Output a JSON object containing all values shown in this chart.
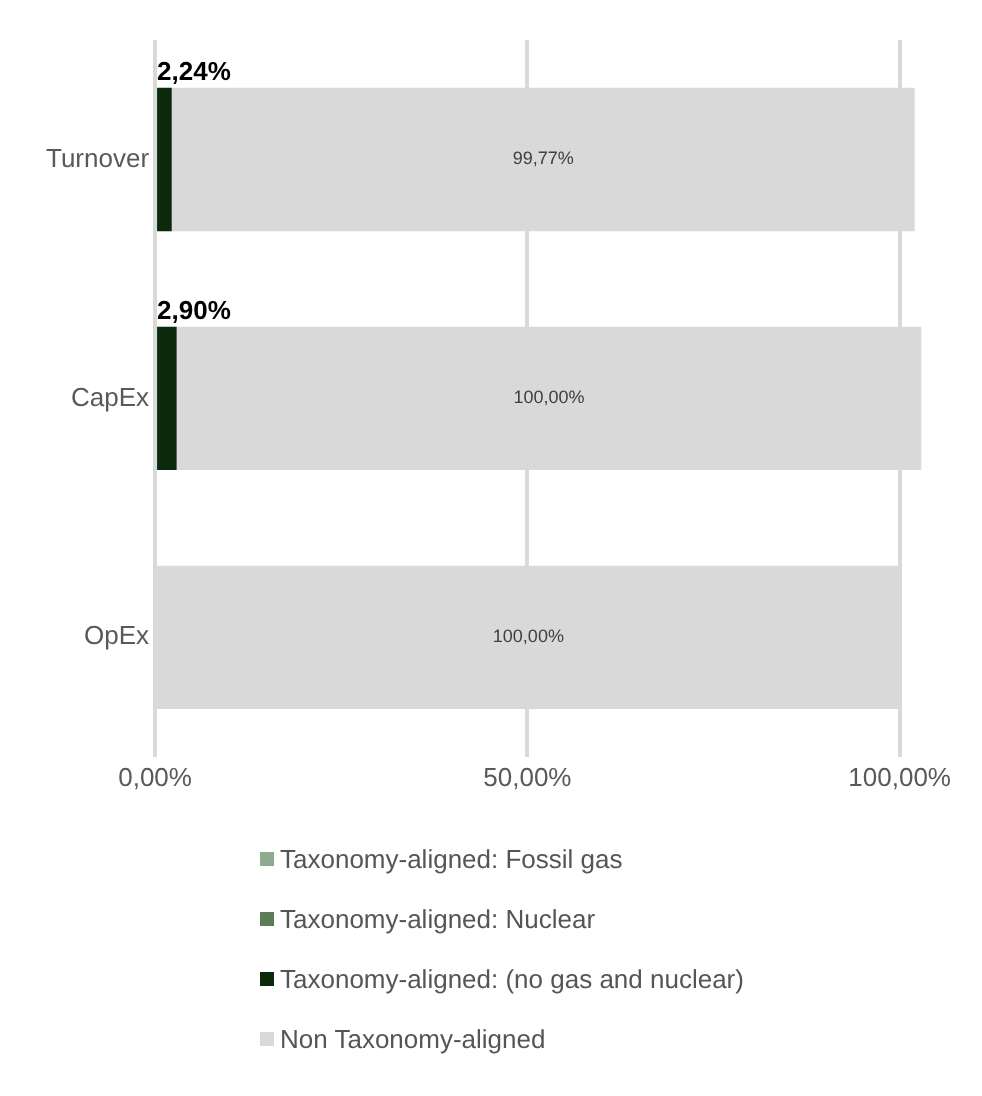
{
  "chart_data": {
    "type": "bar",
    "orientation": "horizontal",
    "stacked": true,
    "categories": [
      "Turnover",
      "CapEx",
      "OpEx"
    ],
    "series": [
      {
        "name": "Taxonomy-aligned: Fossil gas",
        "color": "#8faa8c",
        "values": [
          0,
          0,
          0
        ]
      },
      {
        "name": "Taxonomy-aligned: Nuclear",
        "color": "#5a7d57",
        "values": [
          0,
          0,
          0
        ]
      },
      {
        "name": "Taxonomy-aligned: (no gas and nuclear)",
        "color": "#0b2a0b",
        "values": [
          2.24,
          2.9,
          0
        ],
        "value_labels": [
          "2,24%",
          "2,90%",
          null
        ]
      },
      {
        "name": "Non Taxonomy-aligned",
        "color": "#d9d9d9",
        "values": [
          99.77,
          100,
          100
        ],
        "value_labels": [
          "99,77%",
          "100,00%",
          "100,00%"
        ]
      }
    ],
    "xlim": [
      0,
      103
    ],
    "xticks": [
      {
        "value": 0,
        "label": "0,00%"
      },
      {
        "value": 50,
        "label": "50,00%"
      },
      {
        "value": 100,
        "label": "100,00%"
      }
    ],
    "grid": "x",
    "legend": "bottom"
  }
}
